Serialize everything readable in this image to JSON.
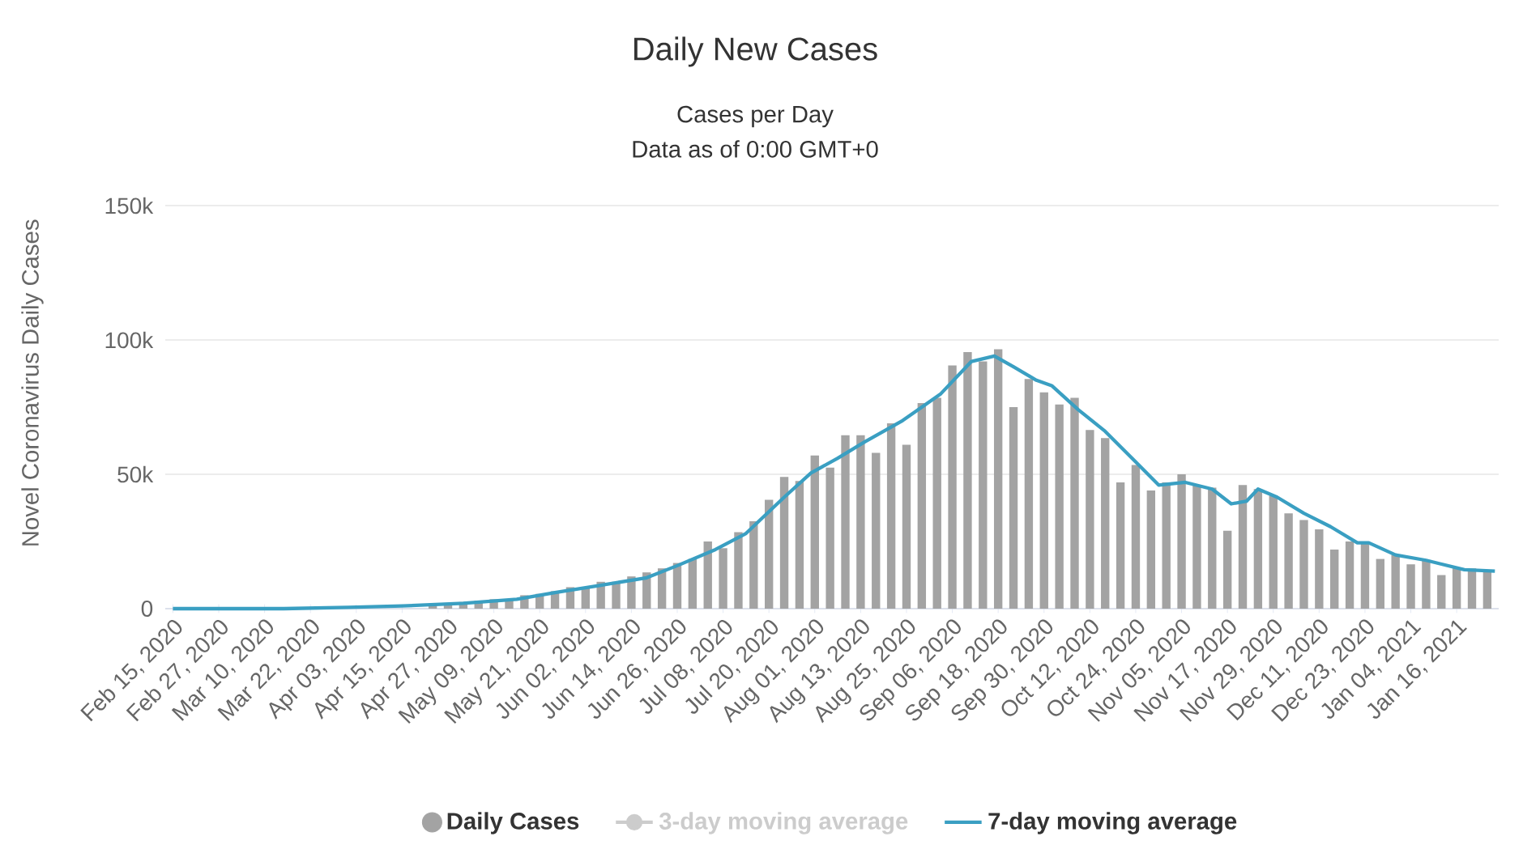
{
  "chart_data": {
    "type": "bar",
    "title": "Daily New Cases",
    "subtitle": "Cases per Day",
    "ylabel": "Novel Coronavirus Daily Cases",
    "annotations": [
      "Data as of 0:00 GMT+0"
    ],
    "xlim": [
      "2020-02-13",
      "2021-01-27"
    ],
    "ylim": [
      0,
      150000
    ],
    "yticks": [
      0,
      {
        "value": 50000,
        "label": "50k"
      },
      {
        "value": 100000,
        "label": "100k"
      },
      {
        "value": 150000,
        "label": "150k"
      }
    ],
    "xticks": [
      {
        "value": "2020-02-15",
        "label": "Feb 15, 2020"
      },
      {
        "value": "2020-02-27",
        "label": "Feb 27, 2020"
      },
      {
        "value": "2020-03-10",
        "label": "Mar 10, 2020"
      },
      {
        "value": "2020-03-22",
        "label": "Mar 22, 2020"
      },
      {
        "value": "2020-04-03",
        "label": "Apr 03, 2020"
      },
      {
        "value": "2020-04-15",
        "label": "Apr 15, 2020"
      },
      {
        "value": "2020-04-27",
        "label": "Apr 27, 2020"
      },
      {
        "value": "2020-05-09",
        "label": "May 09, 2020"
      },
      {
        "value": "2020-05-21",
        "label": "May 21, 2020"
      },
      {
        "value": "2020-06-02",
        "label": "Jun 02, 2020"
      },
      {
        "value": "2020-06-14",
        "label": "Jun 14, 2020"
      },
      {
        "value": "2020-06-26",
        "label": "Jun 26, 2020"
      },
      {
        "value": "2020-07-08",
        "label": "Jul 08, 2020"
      },
      {
        "value": "2020-07-20",
        "label": "Jul 20, 2020"
      },
      {
        "value": "2020-08-01",
        "label": "Aug 01, 2020"
      },
      {
        "value": "2020-08-13",
        "label": "Aug 13, 2020"
      },
      {
        "value": "2020-08-25",
        "label": "Aug 25, 2020"
      },
      {
        "value": "2020-09-06",
        "label": "Sep 06, 2020"
      },
      {
        "value": "2020-09-18",
        "label": "Sep 18, 2020"
      },
      {
        "value": "2020-09-30",
        "label": "Sep 30, 2020"
      },
      {
        "value": "2020-10-12",
        "label": "Oct 12, 2020"
      },
      {
        "value": "2020-10-24",
        "label": "Oct 24, 2020"
      },
      {
        "value": "2020-11-05",
        "label": "Nov 05, 2020"
      },
      {
        "value": "2020-11-17",
        "label": "Nov 17, 2020"
      },
      {
        "value": "2020-11-29",
        "label": "Nov 29, 2020"
      },
      {
        "value": "2020-12-11",
        "label": "Dec 11, 2020"
      },
      {
        "value": "2020-12-23",
        "label": "Dec 23, 2020"
      },
      {
        "value": "2021-01-04",
        "label": "Jan 04, 2021"
      },
      {
        "value": "2021-01-16",
        "label": "Jan 16, 2021"
      }
    ],
    "grid": "y",
    "legend": "bottom",
    "series": [
      {
        "name": "Daily Cases",
        "color": "#a3a3a3",
        "x": [
          "2020-02-15",
          "2020-02-19",
          "2020-02-23",
          "2020-02-27",
          "2020-03-02",
          "2020-03-06",
          "2020-03-10",
          "2020-03-14",
          "2020-03-18",
          "2020-03-22",
          "2020-03-26",
          "2020-03-30",
          "2020-04-03",
          "2020-04-07",
          "2020-04-11",
          "2020-04-15",
          "2020-04-19",
          "2020-04-23",
          "2020-04-27",
          "2020-05-01",
          "2020-05-05",
          "2020-05-09",
          "2020-05-13",
          "2020-05-17",
          "2020-05-21",
          "2020-05-25",
          "2020-05-29",
          "2020-06-02",
          "2020-06-06",
          "2020-06-10",
          "2020-06-14",
          "2020-06-18",
          "2020-06-22",
          "2020-06-26",
          "2020-06-30",
          "2020-07-04",
          "2020-07-08",
          "2020-07-12",
          "2020-07-16",
          "2020-07-20",
          "2020-07-24",
          "2020-07-28",
          "2020-08-01",
          "2020-08-05",
          "2020-08-09",
          "2020-08-13",
          "2020-08-17",
          "2020-08-21",
          "2020-08-25",
          "2020-08-29",
          "2020-09-02",
          "2020-09-06",
          "2020-09-10",
          "2020-09-14",
          "2020-09-18",
          "2020-09-22",
          "2020-09-26",
          "2020-09-30",
          "2020-10-04",
          "2020-10-08",
          "2020-10-12",
          "2020-10-16",
          "2020-10-20",
          "2020-10-24",
          "2020-10-28",
          "2020-11-01",
          "2020-11-05",
          "2020-11-09",
          "2020-11-13",
          "2020-11-17",
          "2020-11-21",
          "2020-11-25",
          "2020-11-29",
          "2020-12-03",
          "2020-12-07",
          "2020-12-11",
          "2020-12-15",
          "2020-12-19",
          "2020-12-23",
          "2020-12-27",
          "2020-12-31",
          "2021-01-04",
          "2021-01-08",
          "2021-01-12",
          "2021-01-16",
          "2021-01-20",
          "2021-01-24"
        ],
        "values": [
          0,
          0,
          0,
          0,
          0,
          0,
          0,
          0,
          0,
          0,
          0,
          0,
          500,
          null,
          null,
          null,
          null,
          1500,
          1500,
          2500,
          3000,
          3500,
          3500,
          5000,
          5500,
          6500,
          8000,
          8000,
          10000,
          10000,
          12000,
          13500,
          15000,
          17000,
          18500,
          25000,
          22500,
          28500,
          32500,
          40500,
          49000,
          47500,
          57000,
          52500,
          64500,
          64500,
          58000,
          69000,
          61000,
          76500,
          78500,
          90500,
          95500,
          92000,
          96500,
          75000,
          85500,
          80500,
          76000,
          78500,
          66500,
          63500,
          47000,
          53500,
          44000,
          47000,
          50000,
          46000,
          45000,
          29000,
          46000,
          44500,
          42000,
          35500,
          33000,
          29500,
          22000,
          25000,
          24500,
          18500,
          20000,
          16500,
          18000,
          12500,
          15000,
          15000,
          14000
        ]
      },
      {
        "name": "3-day moving average",
        "type": "line",
        "color": "#cccccc",
        "marker": "circle"
      },
      {
        "name": "7-day moving average",
        "type": "line",
        "color": "#3a9fc2",
        "x": [
          "2020-02-15",
          "2020-03-15",
          "2020-04-01",
          "2020-04-15",
          "2020-05-01",
          "2020-05-15",
          "2020-05-25",
          "2020-06-05",
          "2020-06-18",
          "2020-06-26",
          "2020-07-06",
          "2020-07-14",
          "2020-07-24",
          "2020-07-31",
          "2020-08-07",
          "2020-08-14",
          "2020-08-24",
          "2020-09-03",
          "2020-09-11",
          "2020-09-17",
          "2020-09-22",
          "2020-09-28",
          "2020-10-02",
          "2020-10-09",
          "2020-10-16",
          "2020-10-23",
          "2020-10-30",
          "2020-11-06",
          "2020-11-13",
          "2020-11-18",
          "2020-11-22",
          "2020-11-25",
          "2020-11-30",
          "2020-12-07",
          "2020-12-14",
          "2020-12-21",
          "2020-12-24",
          "2020-12-31",
          "2021-01-08",
          "2021-01-18",
          "2021-01-26"
        ],
        "values": [
          0,
          0,
          500,
          1000,
          2000,
          3500,
          6000,
          8500,
          11500,
          16000,
          22000,
          28000,
          41500,
          50500,
          56000,
          62000,
          70000,
          80000,
          92000,
          94000,
          90000,
          85000,
          83000,
          74000,
          66000,
          56000,
          46000,
          47000,
          44500,
          39000,
          40000,
          44500,
          41500,
          35500,
          30500,
          24500,
          24500,
          20000,
          18000,
          14500,
          14000
        ]
      }
    ]
  }
}
